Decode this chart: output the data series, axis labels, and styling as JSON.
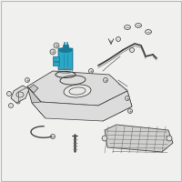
{
  "bg_color": "#f0f0ee",
  "border_color": "#bbbbbb",
  "highlight_color": "#29a8c8",
  "highlight_dark": "#1a7a96",
  "line_color": "#777777",
  "dark_color": "#444444",
  "fill_light": "#dcdcdc",
  "fill_mid": "#c8c8c8",
  "fill_dark": "#b8b8b8",
  "fig_size": [
    2.0,
    2.0
  ],
  "dpi": 100
}
